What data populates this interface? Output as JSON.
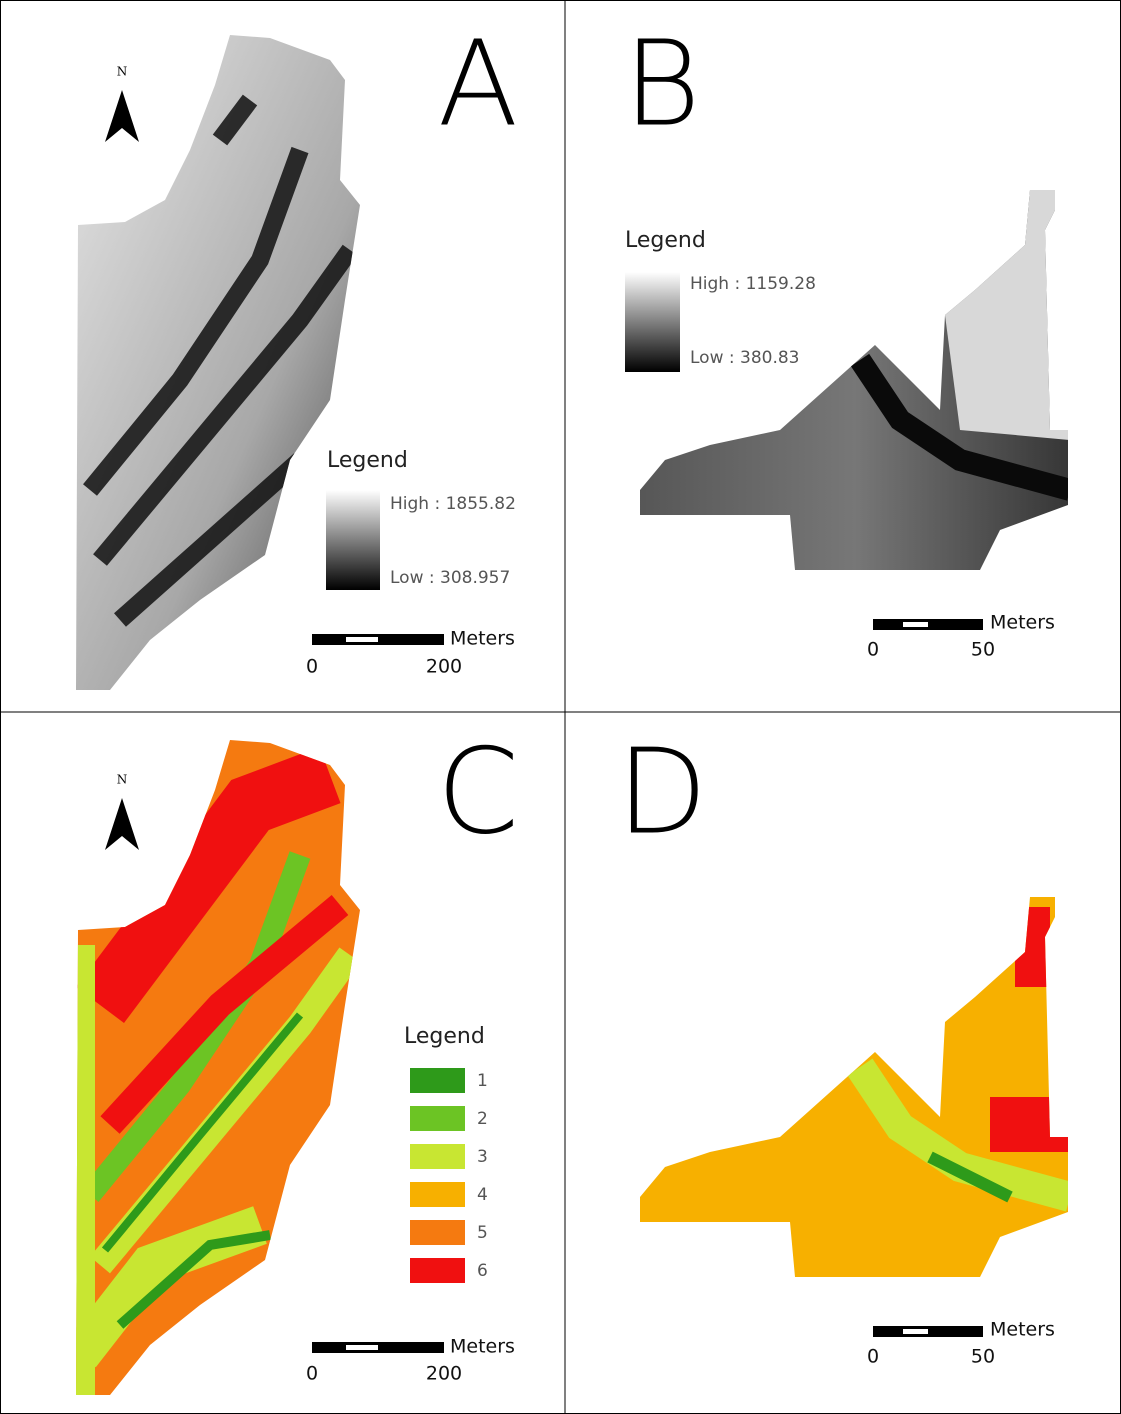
{
  "panels": [
    {
      "label": "A",
      "north": "N",
      "legend": {
        "title": "Legend",
        "high": "High : 1855.82",
        "low": "Low : 308.957"
      },
      "scale": {
        "unit": "Meters",
        "ticks": [
          "0",
          "200"
        ]
      }
    },
    {
      "label": "B",
      "legend": {
        "title": "Legend",
        "high": "High : 1159.28",
        "low": "Low : 380.83"
      },
      "scale": {
        "unit": "Meters",
        "ticks": [
          "0",
          "50"
        ]
      }
    },
    {
      "label": "C",
      "north": "N",
      "legend": {
        "title": "Legend",
        "items": [
          {
            "label": "1",
            "color": "#2e9a1a"
          },
          {
            "label": "2",
            "color": "#6cc424"
          },
          {
            "label": "3",
            "color": "#c8e632"
          },
          {
            "label": "4",
            "color": "#f7b000"
          },
          {
            "label": "5",
            "color": "#f57a10"
          },
          {
            "label": "6",
            "color": "#f01010"
          }
        ]
      },
      "scale": {
        "unit": "Meters",
        "ticks": [
          "0",
          "200"
        ]
      }
    },
    {
      "label": "D",
      "scale": {
        "unit": "Meters",
        "ticks": [
          "0",
          "50"
        ]
      }
    }
  ]
}
